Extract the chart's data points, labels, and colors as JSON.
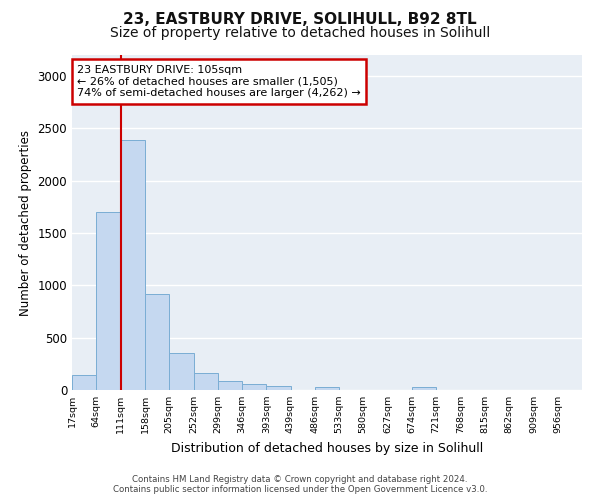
{
  "title": "23, EASTBURY DRIVE, SOLIHULL, B92 8TL",
  "subtitle": "Size of property relative to detached houses in Solihull",
  "xlabel": "Distribution of detached houses by size in Solihull",
  "ylabel": "Number of detached properties",
  "footer_line1": "Contains HM Land Registry data © Crown copyright and database right 2024.",
  "footer_line2": "Contains public sector information licensed under the Open Government Licence v3.0.",
  "bar_color": "#c5d8f0",
  "bar_edge_color": "#7aadd4",
  "background_color": "#e8eef5",
  "annotation_line1": "23 EASTBURY DRIVE: 105sqm",
  "annotation_line2": "← 26% of detached houses are smaller (1,505)",
  "annotation_line3": "74% of semi-detached houses are larger (4,262) →",
  "property_line_x": 111,
  "bin_edges": [
    17,
    64,
    111,
    158,
    205,
    252,
    299,
    346,
    393,
    439,
    486,
    533,
    580,
    627,
    674,
    721,
    768,
    815,
    862,
    909,
    956
  ],
  "bin_labels": [
    "17sqm",
    "64sqm",
    "111sqm",
    "158sqm",
    "205sqm",
    "252sqm",
    "299sqm",
    "346sqm",
    "393sqm",
    "439sqm",
    "486sqm",
    "533sqm",
    "580sqm",
    "627sqm",
    "674sqm",
    "721sqm",
    "768sqm",
    "815sqm",
    "862sqm",
    "909sqm",
    "956sqm"
  ],
  "bar_heights": [
    140,
    1700,
    2390,
    920,
    355,
    160,
    90,
    55,
    35,
    0,
    30,
    0,
    0,
    0,
    25,
    0,
    0,
    0,
    0,
    0
  ],
  "ylim": [
    0,
    3200
  ],
  "yticks": [
    0,
    500,
    1000,
    1500,
    2000,
    2500,
    3000
  ],
  "grid_color": "#ffffff",
  "red_line_color": "#cc0000",
  "annotation_box_color": "#cc0000",
  "title_fontsize": 11,
  "subtitle_fontsize": 10
}
